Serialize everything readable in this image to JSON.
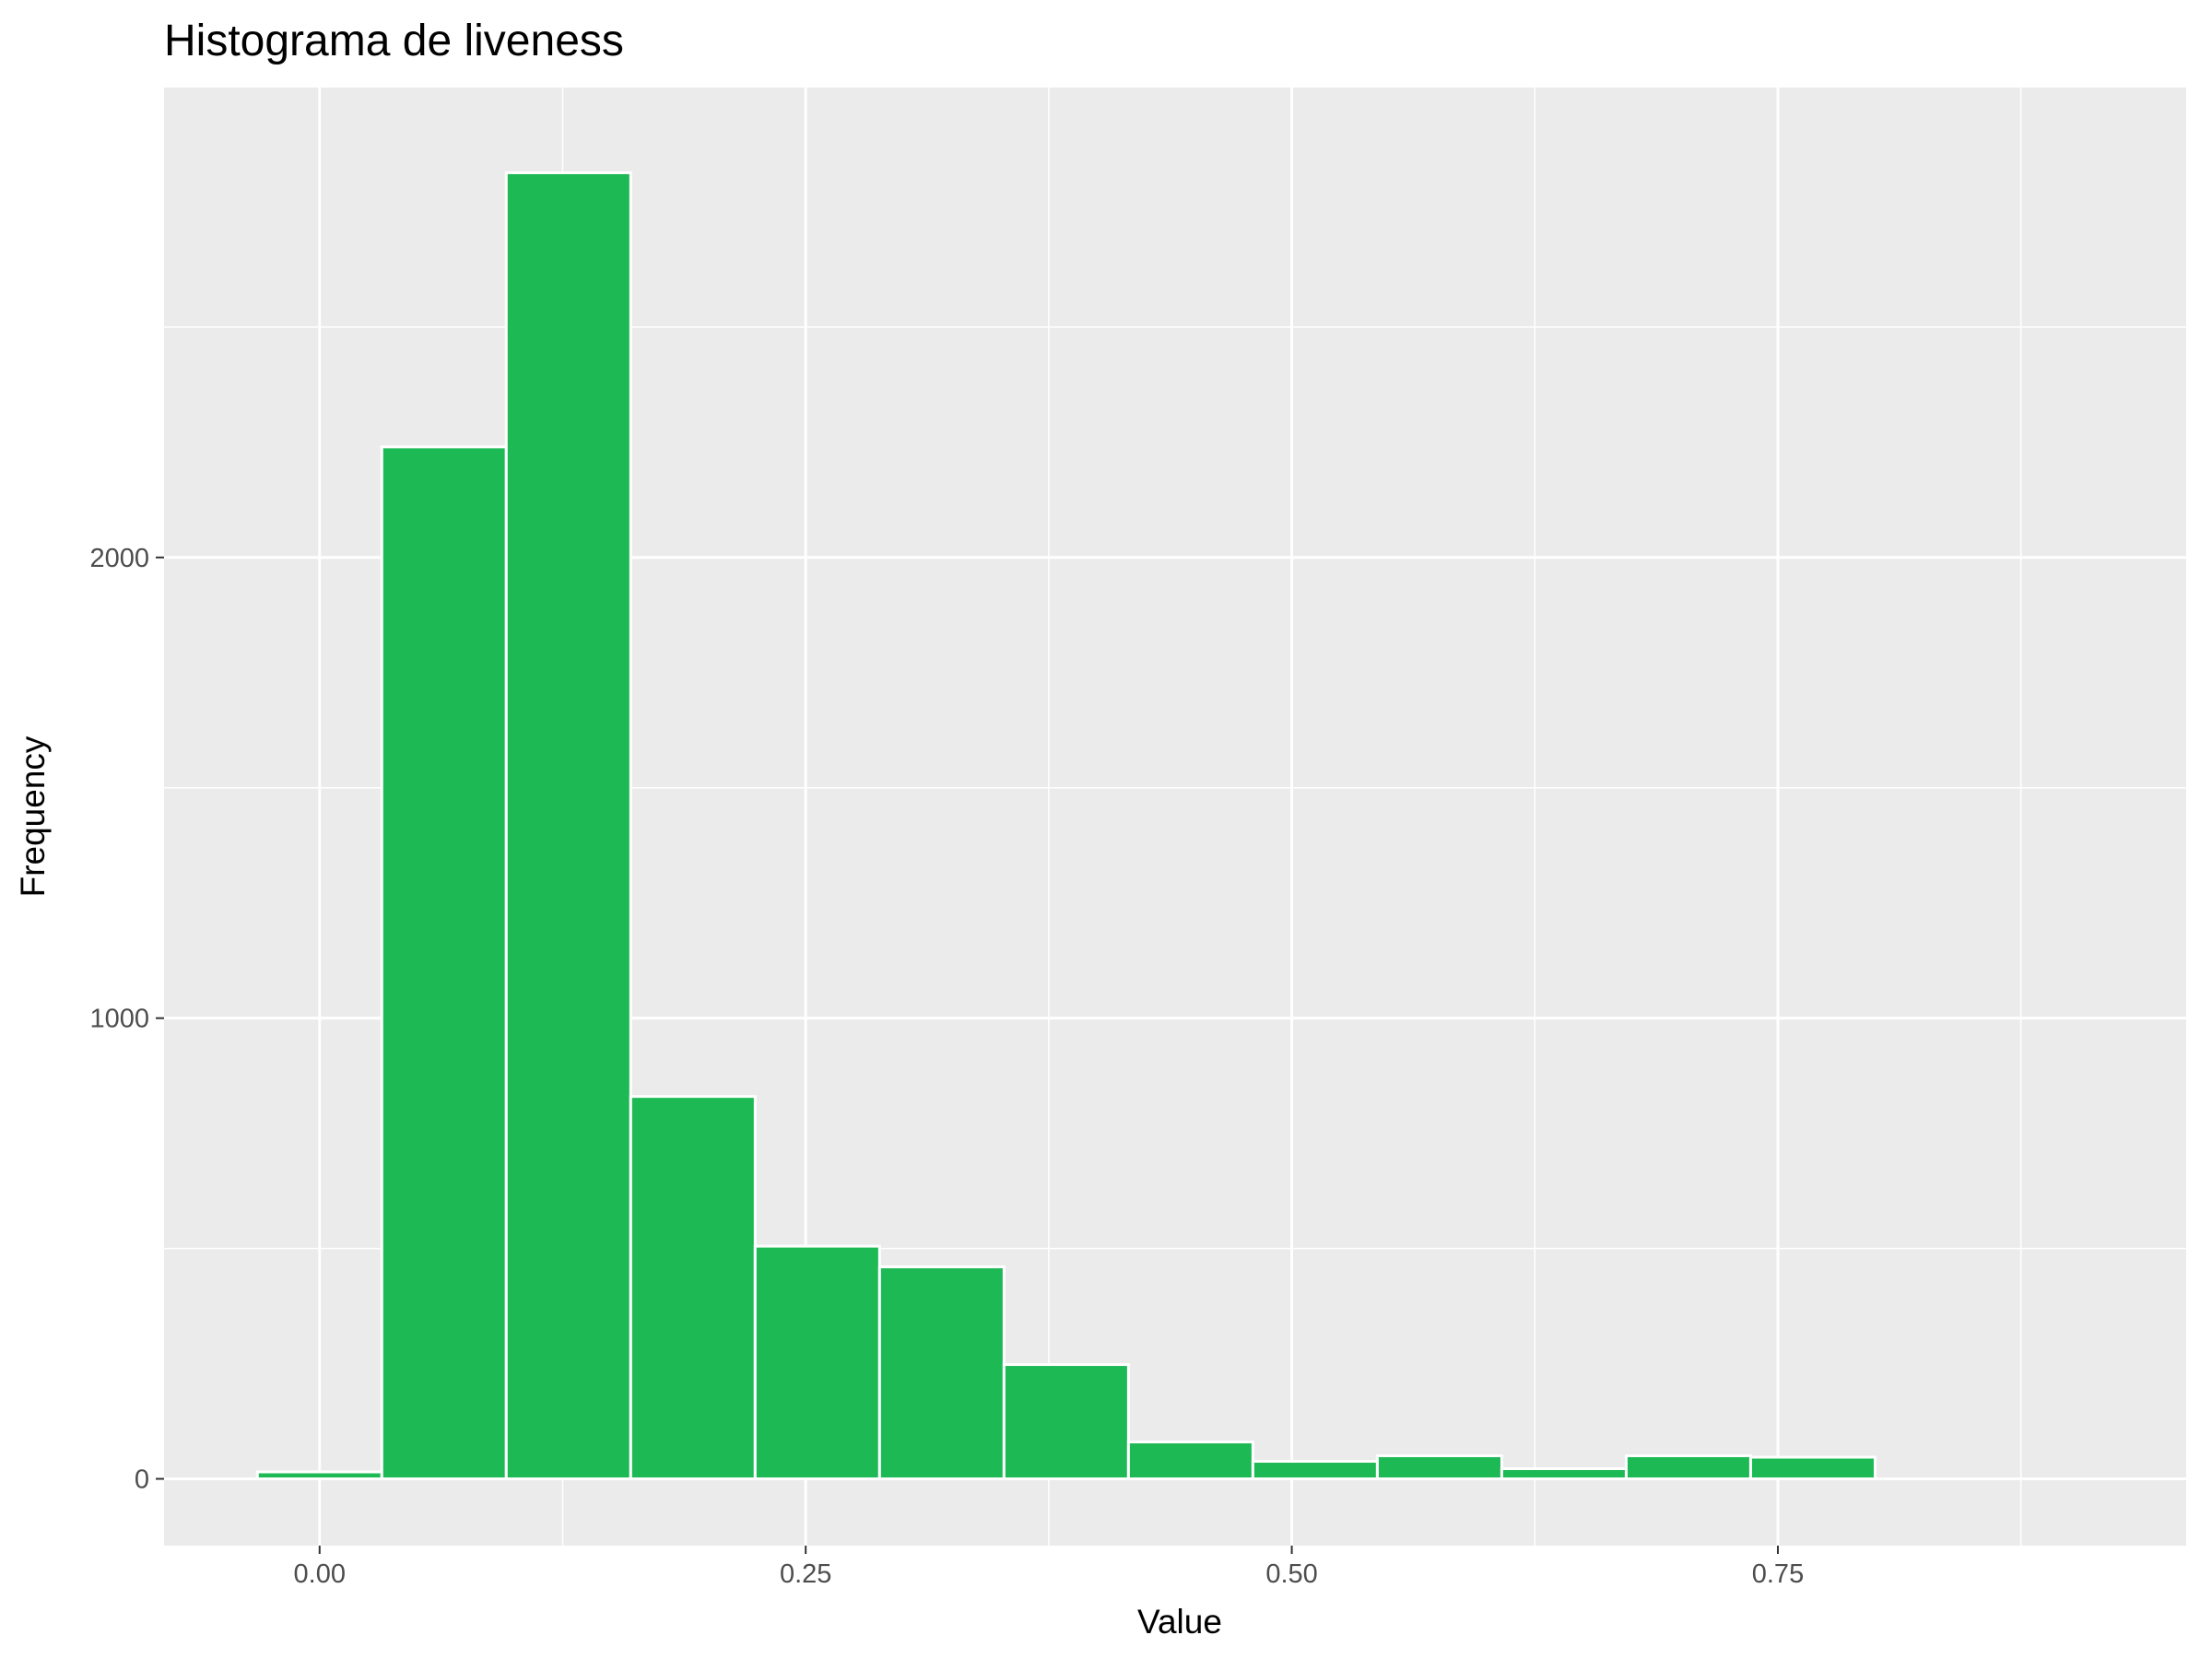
{
  "chart_data": {
    "type": "bar",
    "title": "Histograma de  liveness",
    "xlabel": "Value",
    "ylabel": "Frequency",
    "xlim": [
      -0.08,
      0.96
    ],
    "ylim": [
      -145,
      3020
    ],
    "bin_width": 0.064,
    "bins": [
      {
        "x_start": -0.032,
        "x_end": 0.032,
        "count": 15
      },
      {
        "x_start": 0.032,
        "x_end": 0.096,
        "count": 2240
      },
      {
        "x_start": 0.096,
        "x_end": 0.16,
        "count": 2835
      },
      {
        "x_start": 0.16,
        "x_end": 0.224,
        "count": 830
      },
      {
        "x_start": 0.224,
        "x_end": 0.288,
        "count": 505
      },
      {
        "x_start": 0.288,
        "x_end": 0.352,
        "count": 460
      },
      {
        "x_start": 0.352,
        "x_end": 0.416,
        "count": 248
      },
      {
        "x_start": 0.416,
        "x_end": 0.48,
        "count": 80
      },
      {
        "x_start": 0.48,
        "x_end": 0.544,
        "count": 38
      },
      {
        "x_start": 0.544,
        "x_end": 0.608,
        "count": 50
      },
      {
        "x_start": 0.608,
        "x_end": 0.672,
        "count": 22
      },
      {
        "x_start": 0.672,
        "x_end": 0.736,
        "count": 50
      },
      {
        "x_start": 0.736,
        "x_end": 0.8,
        "count": 47
      },
      {
        "x_start": 0.8,
        "x_end": 0.864,
        "count": 0
      },
      {
        "x_start": 0.864,
        "x_end": 0.928,
        "count": 0
      }
    ],
    "x_ticks": [
      {
        "value": 0.0,
        "label": "0.00"
      },
      {
        "value": 0.25,
        "label": "0.25"
      },
      {
        "value": 0.5,
        "label": "0.50"
      },
      {
        "value": 0.75,
        "label": "0.75"
      }
    ],
    "x_minor_ticks": [
      0.125,
      0.375,
      0.625,
      0.875
    ],
    "y_ticks": [
      {
        "value": 0,
        "label": "0"
      },
      {
        "value": 1000,
        "label": "1000"
      },
      {
        "value": 2000,
        "label": "2000"
      }
    ],
    "y_minor_ticks": [
      500,
      1500,
      2500
    ],
    "grid": true,
    "legend": "none",
    "colors": {
      "bar_fill": "#1DB954",
      "bar_edge": "#ffffff",
      "panel_background": "#EBEBEB",
      "grid": "#ffffff",
      "text": "#000000",
      "tick_text": "#4D4D4D"
    }
  }
}
